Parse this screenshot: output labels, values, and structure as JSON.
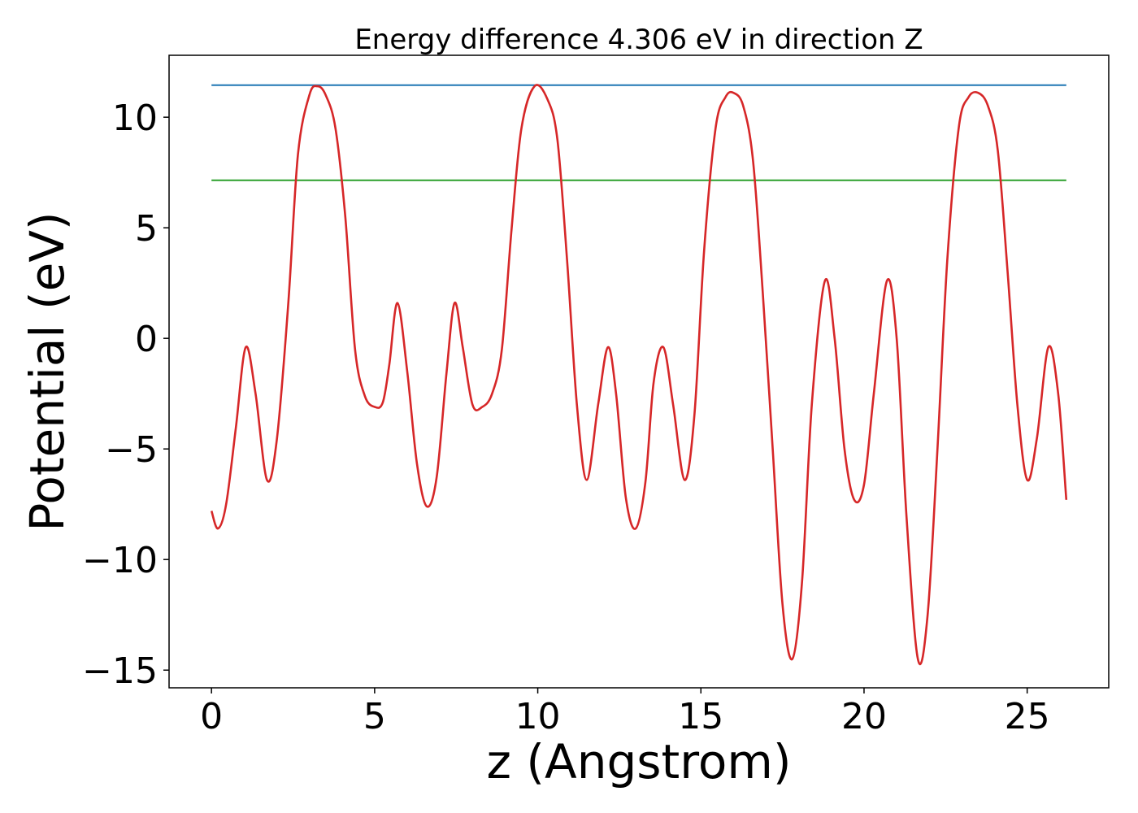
{
  "chart_data": {
    "type": "line",
    "title": "Energy difference 4.306 eV in direction Z",
    "xlabel": "z (Angstrom)",
    "ylabel": "Potential (eV)",
    "xlim": [
      -1.3,
      27.5
    ],
    "ylim": [
      -15.8,
      12.8
    ],
    "xticks": [
      0,
      5,
      10,
      15,
      20,
      25
    ],
    "xtick_labels": [
      "0",
      "5",
      "10",
      "15",
      "20",
      "25"
    ],
    "yticks": [
      10,
      5,
      0,
      -5,
      -10,
      -15
    ],
    "ytick_labels": [
      "10",
      "5",
      "0",
      "−5",
      "−10",
      "−15"
    ],
    "grid": false,
    "series": [
      {
        "color": "#d62728",
        "x": [
          0.0,
          0.2,
          0.45,
          0.75,
          1.05,
          1.35,
          1.7,
          2.0,
          2.35,
          2.65,
          3.0,
          3.25,
          3.5,
          3.8,
          4.1,
          4.4,
          4.7,
          5.0,
          5.25,
          5.45,
          5.7,
          6.0,
          6.3,
          6.6,
          6.9,
          7.2,
          7.45,
          7.7,
          8.0,
          8.3,
          8.6,
          8.9,
          9.2,
          9.5,
          9.9,
          10.3,
          10.6,
          10.9,
          11.2,
          11.5,
          11.85,
          12.15,
          12.4,
          12.7,
          13.0,
          13.3,
          13.55,
          13.85,
          14.15,
          14.5,
          14.8,
          15.1,
          15.45,
          15.75,
          16.0,
          16.3,
          16.6,
          16.9,
          17.2,
          17.5,
          17.8,
          18.1,
          18.4,
          18.8,
          19.1,
          19.4,
          19.7,
          20.0,
          20.3,
          20.7,
          21.0,
          21.3,
          21.65,
          21.95,
          22.25,
          22.55,
          22.9,
          23.2,
          23.5,
          23.8,
          24.1,
          24.4,
          24.7,
          25.0,
          25.3,
          25.65,
          25.95,
          26.2
        ],
        "values": [
          -7.8,
          -8.6,
          -7.5,
          -4.0,
          -0.4,
          -2.5,
          -6.4,
          -4.6,
          1.5,
          8.3,
          11.0,
          11.4,
          11.0,
          9.5,
          5.5,
          -0.5,
          -2.6,
          -3.1,
          -2.9,
          -1.2,
          1.6,
          -1.5,
          -5.7,
          -7.6,
          -6.3,
          -1.6,
          1.6,
          -0.4,
          -3.0,
          -3.1,
          -2.5,
          -0.5,
          5.0,
          9.5,
          11.4,
          10.8,
          9.0,
          3.5,
          -3.0,
          -6.4,
          -3.0,
          -0.4,
          -2.5,
          -7.2,
          -8.6,
          -6.5,
          -2.0,
          -0.4,
          -3.0,
          -6.4,
          -3.5,
          4.0,
          9.5,
          10.9,
          11.1,
          10.5,
          8.0,
          2.0,
          -5.0,
          -12.0,
          -14.5,
          -11.0,
          -3.0,
          2.6,
          0.0,
          -5.0,
          -7.3,
          -6.6,
          -2.5,
          2.6,
          0.0,
          -8.0,
          -14.5,
          -12.5,
          -5.0,
          3.5,
          9.5,
          10.9,
          11.1,
          10.5,
          8.5,
          3.0,
          -3.0,
          -6.4,
          -4.5,
          -0.4,
          -2.5,
          -7.3
        ]
      },
      {
        "color": "#1f77b4",
        "x": [
          0.0,
          26.2
        ],
        "values": [
          11.45,
          11.45
        ]
      },
      {
        "color": "#2ca02c",
        "x": [
          0.0,
          26.2
        ],
        "values": [
          7.15,
          7.15
        ]
      }
    ]
  }
}
